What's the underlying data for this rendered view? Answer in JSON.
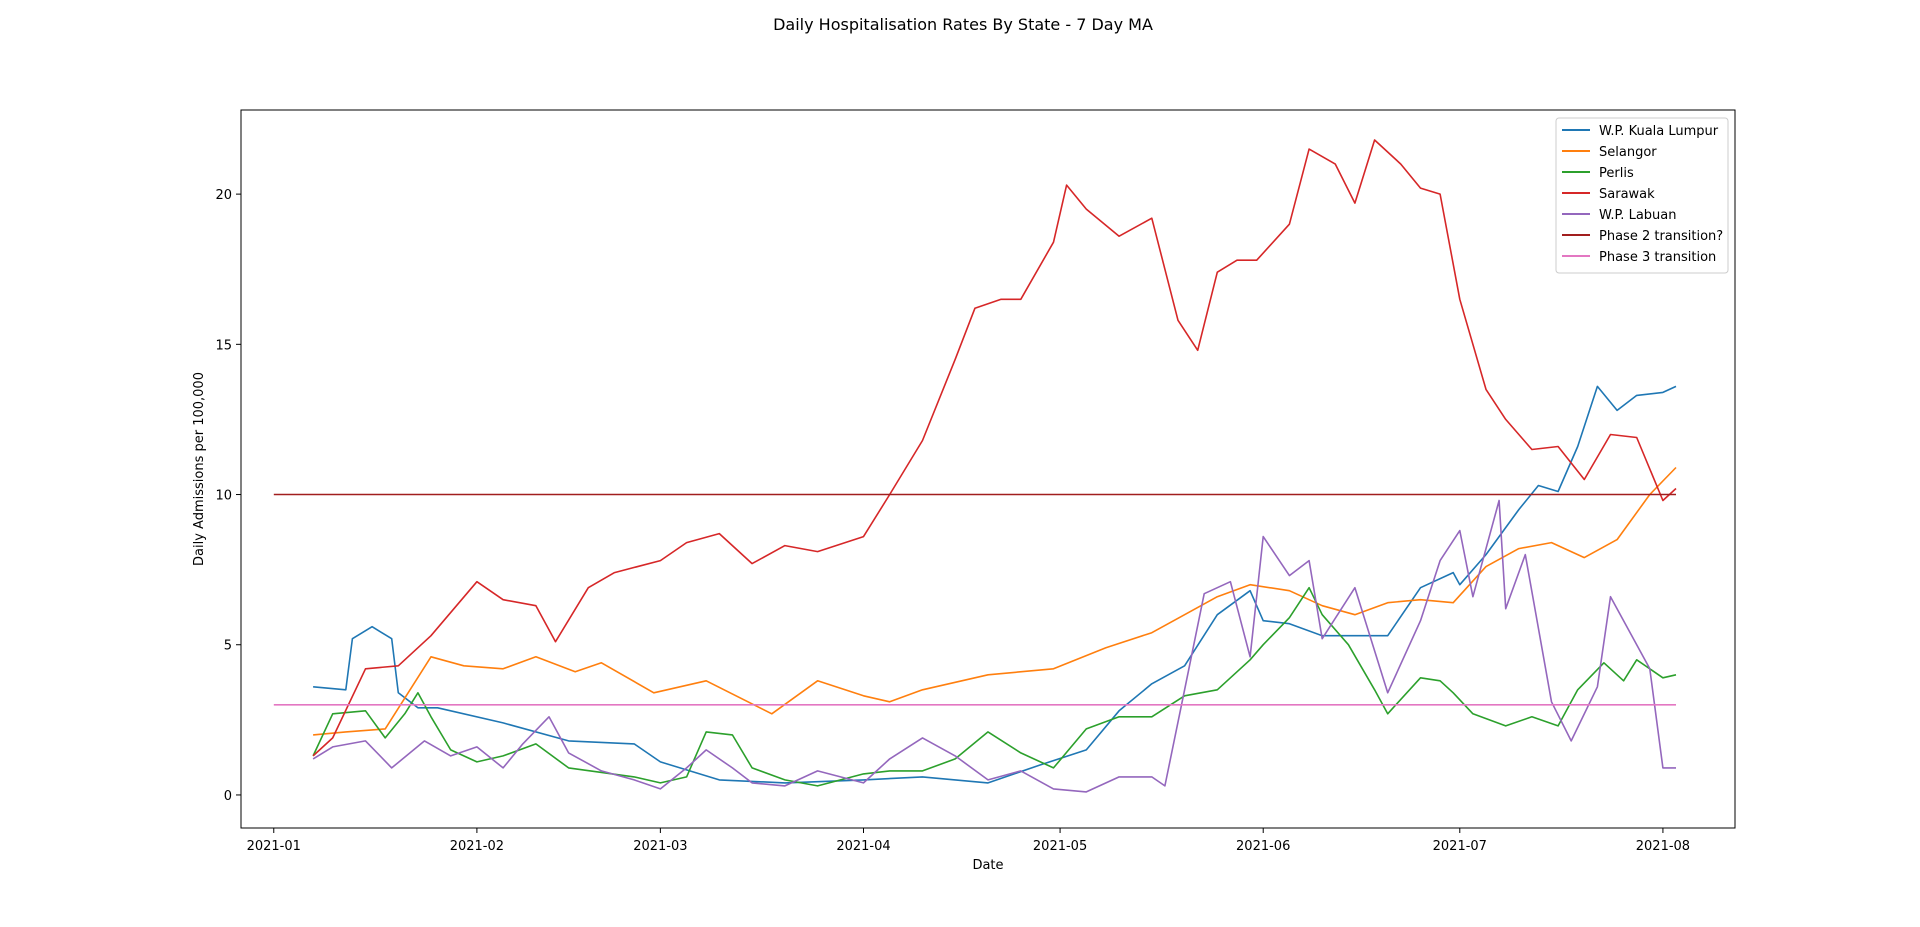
{
  "chart_data": {
    "type": "line",
    "title": "Daily Hospitalisation Rates By State - 7 Day MA",
    "xlabel": "Date",
    "ylabel": "Daily Admissions per 100,000",
    "xlim": [
      "2020-12-27",
      "2021-08-12"
    ],
    "ylim": [
      -1.1,
      22.8
    ],
    "x_ticks": [
      "2021-01-01",
      "2021-02-01",
      "2021-03-01",
      "2021-04-01",
      "2021-05-01",
      "2021-06-01",
      "2021-07-01",
      "2021-08-01"
    ],
    "x_tick_labels": [
      "2021-01",
      "2021-02",
      "2021-03",
      "2021-04",
      "2021-05",
      "2021-06",
      "2021-07",
      "2021-08"
    ],
    "y_ticks": [
      0,
      5,
      10,
      15,
      20
    ],
    "y_tick_labels": [
      "0",
      "5",
      "10",
      "15",
      "20"
    ],
    "legend_position": "top-right",
    "grid": false,
    "series": [
      {
        "name": "W.P. Kuala Lumpur",
        "color": "#1f77b4",
        "points": [
          [
            "2021-01-07",
            3.6
          ],
          [
            "2021-01-12",
            3.5
          ],
          [
            "2021-01-13",
            5.2
          ],
          [
            "2021-01-16",
            5.6
          ],
          [
            "2021-01-19",
            5.2
          ],
          [
            "2021-01-20",
            3.4
          ],
          [
            "2021-01-23",
            2.9
          ],
          [
            "2021-01-26",
            2.9
          ],
          [
            "2021-02-05",
            2.4
          ],
          [
            "2021-02-15",
            1.8
          ],
          [
            "2021-02-25",
            1.7
          ],
          [
            "2021-03-01",
            1.1
          ],
          [
            "2021-03-10",
            0.5
          ],
          [
            "2021-03-20",
            0.4
          ],
          [
            "2021-04-01",
            0.5
          ],
          [
            "2021-04-10",
            0.6
          ],
          [
            "2021-04-20",
            0.4
          ],
          [
            "2021-04-28",
            1.0
          ],
          [
            "2021-05-05",
            1.5
          ],
          [
            "2021-05-10",
            2.8
          ],
          [
            "2021-05-15",
            3.7
          ],
          [
            "2021-05-20",
            4.3
          ],
          [
            "2021-05-25",
            6.0
          ],
          [
            "2021-05-30",
            6.8
          ],
          [
            "2021-06-01",
            5.8
          ],
          [
            "2021-06-05",
            5.7
          ],
          [
            "2021-06-10",
            5.3
          ],
          [
            "2021-06-15",
            5.3
          ],
          [
            "2021-06-20",
            5.3
          ],
          [
            "2021-06-25",
            6.9
          ],
          [
            "2021-06-30",
            7.4
          ],
          [
            "2021-07-01",
            7.0
          ],
          [
            "2021-07-05",
            8.0
          ],
          [
            "2021-07-10",
            9.5
          ],
          [
            "2021-07-13",
            10.3
          ],
          [
            "2021-07-16",
            10.1
          ],
          [
            "2021-07-19",
            11.6
          ],
          [
            "2021-07-22",
            13.6
          ],
          [
            "2021-07-25",
            12.8
          ],
          [
            "2021-07-28",
            13.3
          ],
          [
            "2021-08-01",
            13.4
          ],
          [
            "2021-08-03",
            13.6
          ]
        ]
      },
      {
        "name": "Selangor",
        "color": "#ff7f0e",
        "points": [
          [
            "2021-01-07",
            2.0
          ],
          [
            "2021-01-12",
            2.1
          ],
          [
            "2021-01-18",
            2.2
          ],
          [
            "2021-01-25",
            4.6
          ],
          [
            "2021-01-30",
            4.3
          ],
          [
            "2021-02-05",
            4.2
          ],
          [
            "2021-02-10",
            4.6
          ],
          [
            "2021-02-16",
            4.1
          ],
          [
            "2021-02-20",
            4.4
          ],
          [
            "2021-02-28",
            3.4
          ],
          [
            "2021-03-08",
            3.8
          ],
          [
            "2021-03-18",
            2.7
          ],
          [
            "2021-03-25",
            3.8
          ],
          [
            "2021-04-01",
            3.3
          ],
          [
            "2021-04-05",
            3.1
          ],
          [
            "2021-04-10",
            3.5
          ],
          [
            "2021-04-20",
            4.0
          ],
          [
            "2021-04-30",
            4.2
          ],
          [
            "2021-05-08",
            4.9
          ],
          [
            "2021-05-15",
            5.4
          ],
          [
            "2021-05-20",
            6.0
          ],
          [
            "2021-05-25",
            6.6
          ],
          [
            "2021-05-30",
            7.0
          ],
          [
            "2021-06-05",
            6.8
          ],
          [
            "2021-06-10",
            6.3
          ],
          [
            "2021-06-15",
            6.0
          ],
          [
            "2021-06-20",
            6.4
          ],
          [
            "2021-06-25",
            6.5
          ],
          [
            "2021-06-30",
            6.4
          ],
          [
            "2021-07-05",
            7.6
          ],
          [
            "2021-07-10",
            8.2
          ],
          [
            "2021-07-15",
            8.4
          ],
          [
            "2021-07-20",
            7.9
          ],
          [
            "2021-07-25",
            8.5
          ],
          [
            "2021-07-30",
            10.0
          ],
          [
            "2021-08-03",
            10.9
          ]
        ]
      },
      {
        "name": "Perlis",
        "color": "#2ca02c",
        "points": [
          [
            "2021-01-07",
            1.3
          ],
          [
            "2021-01-10",
            2.7
          ],
          [
            "2021-01-15",
            2.8
          ],
          [
            "2021-01-18",
            1.9
          ],
          [
            "2021-01-21",
            2.7
          ],
          [
            "2021-01-23",
            3.4
          ],
          [
            "2021-01-25",
            2.6
          ],
          [
            "2021-01-28",
            1.5
          ],
          [
            "2021-02-01",
            1.1
          ],
          [
            "2021-02-05",
            1.3
          ],
          [
            "2021-02-10",
            1.7
          ],
          [
            "2021-02-15",
            0.9
          ],
          [
            "2021-02-25",
            0.6
          ],
          [
            "2021-03-01",
            0.4
          ],
          [
            "2021-03-05",
            0.6
          ],
          [
            "2021-03-08",
            2.1
          ],
          [
            "2021-03-12",
            2.0
          ],
          [
            "2021-03-15",
            0.9
          ],
          [
            "2021-03-20",
            0.5
          ],
          [
            "2021-03-25",
            0.3
          ],
          [
            "2021-04-01",
            0.7
          ],
          [
            "2021-04-05",
            0.8
          ],
          [
            "2021-04-10",
            0.8
          ],
          [
            "2021-04-15",
            1.2
          ],
          [
            "2021-04-20",
            2.1
          ],
          [
            "2021-04-25",
            1.4
          ],
          [
            "2021-04-30",
            0.9
          ],
          [
            "2021-05-05",
            2.2
          ],
          [
            "2021-05-10",
            2.6
          ],
          [
            "2021-05-15",
            2.6
          ],
          [
            "2021-05-20",
            3.3
          ],
          [
            "2021-05-25",
            3.5
          ],
          [
            "2021-05-30",
            4.5
          ],
          [
            "2021-06-01",
            5.0
          ],
          [
            "2021-06-05",
            5.9
          ],
          [
            "2021-06-08",
            6.9
          ],
          [
            "2021-06-10",
            6.0
          ],
          [
            "2021-06-14",
            5.0
          ],
          [
            "2021-06-18",
            3.5
          ],
          [
            "2021-06-20",
            2.7
          ],
          [
            "2021-06-25",
            3.9
          ],
          [
            "2021-06-28",
            3.8
          ],
          [
            "2021-06-30",
            3.4
          ],
          [
            "2021-07-03",
            2.7
          ],
          [
            "2021-07-08",
            2.3
          ],
          [
            "2021-07-12",
            2.6
          ],
          [
            "2021-07-16",
            2.3
          ],
          [
            "2021-07-19",
            3.5
          ],
          [
            "2021-07-23",
            4.4
          ],
          [
            "2021-07-26",
            3.8
          ],
          [
            "2021-07-28",
            4.5
          ],
          [
            "2021-08-01",
            3.9
          ],
          [
            "2021-08-03",
            4.0
          ]
        ]
      },
      {
        "name": "Sarawak",
        "color": "#d62728",
        "points": [
          [
            "2021-01-07",
            1.3
          ],
          [
            "2021-01-10",
            1.9
          ],
          [
            "2021-01-15",
            4.2
          ],
          [
            "2021-01-20",
            4.3
          ],
          [
            "2021-01-25",
            5.3
          ],
          [
            "2021-02-01",
            7.1
          ],
          [
            "2021-02-05",
            6.5
          ],
          [
            "2021-02-10",
            6.3
          ],
          [
            "2021-02-13",
            5.1
          ],
          [
            "2021-02-18",
            6.9
          ],
          [
            "2021-02-22",
            7.4
          ],
          [
            "2021-03-01",
            7.8
          ],
          [
            "2021-03-05",
            8.4
          ],
          [
            "2021-03-10",
            8.7
          ],
          [
            "2021-03-15",
            7.7
          ],
          [
            "2021-03-20",
            8.3
          ],
          [
            "2021-03-25",
            8.1
          ],
          [
            "2021-04-01",
            8.6
          ],
          [
            "2021-04-05",
            10.0
          ],
          [
            "2021-04-10",
            11.8
          ],
          [
            "2021-04-15",
            14.5
          ],
          [
            "2021-04-18",
            16.2
          ],
          [
            "2021-04-22",
            16.5
          ],
          [
            "2021-04-25",
            16.5
          ],
          [
            "2021-04-30",
            18.4
          ],
          [
            "2021-05-02",
            20.3
          ],
          [
            "2021-05-05",
            19.5
          ],
          [
            "2021-05-10",
            18.6
          ],
          [
            "2021-05-15",
            19.2
          ],
          [
            "2021-05-19",
            15.8
          ],
          [
            "2021-05-22",
            14.8
          ],
          [
            "2021-05-25",
            17.4
          ],
          [
            "2021-05-28",
            17.8
          ],
          [
            "2021-05-31",
            17.8
          ],
          [
            "2021-06-05",
            19.0
          ],
          [
            "2021-06-08",
            21.5
          ],
          [
            "2021-06-12",
            21.0
          ],
          [
            "2021-06-15",
            19.7
          ],
          [
            "2021-06-18",
            21.8
          ],
          [
            "2021-06-22",
            21.0
          ],
          [
            "2021-06-25",
            20.2
          ],
          [
            "2021-06-28",
            20.0
          ],
          [
            "2021-07-01",
            16.5
          ],
          [
            "2021-07-05",
            13.5
          ],
          [
            "2021-07-08",
            12.5
          ],
          [
            "2021-07-12",
            11.5
          ],
          [
            "2021-07-16",
            11.6
          ],
          [
            "2021-07-20",
            10.5
          ],
          [
            "2021-07-24",
            12.0
          ],
          [
            "2021-07-28",
            11.9
          ],
          [
            "2021-08-01",
            9.8
          ],
          [
            "2021-08-03",
            10.2
          ]
        ]
      },
      {
        "name": "W.P. Labuan",
        "color": "#9467bd",
        "points": [
          [
            "2021-01-07",
            1.2
          ],
          [
            "2021-01-10",
            1.6
          ],
          [
            "2021-01-15",
            1.8
          ],
          [
            "2021-01-19",
            0.9
          ],
          [
            "2021-01-24",
            1.8
          ],
          [
            "2021-01-28",
            1.3
          ],
          [
            "2021-02-01",
            1.6
          ],
          [
            "2021-02-05",
            0.9
          ],
          [
            "2021-02-08",
            1.7
          ],
          [
            "2021-02-12",
            2.6
          ],
          [
            "2021-02-15",
            1.4
          ],
          [
            "2021-02-20",
            0.8
          ],
          [
            "2021-02-25",
            0.5
          ],
          [
            "2021-03-01",
            0.2
          ],
          [
            "2021-03-05",
            0.9
          ],
          [
            "2021-03-08",
            1.5
          ],
          [
            "2021-03-12",
            0.9
          ],
          [
            "2021-03-15",
            0.4
          ],
          [
            "2021-03-20",
            0.3
          ],
          [
            "2021-03-25",
            0.8
          ],
          [
            "2021-04-01",
            0.4
          ],
          [
            "2021-04-05",
            1.2
          ],
          [
            "2021-04-10",
            1.9
          ],
          [
            "2021-04-15",
            1.3
          ],
          [
            "2021-04-20",
            0.5
          ],
          [
            "2021-04-25",
            0.8
          ],
          [
            "2021-04-30",
            0.2
          ],
          [
            "2021-05-05",
            0.1
          ],
          [
            "2021-05-10",
            0.6
          ],
          [
            "2021-05-15",
            0.6
          ],
          [
            "2021-05-17",
            0.3
          ],
          [
            "2021-05-20",
            3.5
          ],
          [
            "2021-05-23",
            6.7
          ],
          [
            "2021-05-27",
            7.1
          ],
          [
            "2021-05-30",
            4.6
          ],
          [
            "2021-06-01",
            8.6
          ],
          [
            "2021-06-05",
            7.3
          ],
          [
            "2021-06-08",
            7.8
          ],
          [
            "2021-06-10",
            5.2
          ],
          [
            "2021-06-15",
            6.9
          ],
          [
            "2021-06-20",
            3.4
          ],
          [
            "2021-06-25",
            5.8
          ],
          [
            "2021-06-28",
            7.8
          ],
          [
            "2021-07-01",
            8.8
          ],
          [
            "2021-07-03",
            6.6
          ],
          [
            "2021-07-07",
            9.8
          ],
          [
            "2021-07-08",
            6.2
          ],
          [
            "2021-07-11",
            8.0
          ],
          [
            "2021-07-15",
            3.1
          ],
          [
            "2021-07-18",
            1.8
          ],
          [
            "2021-07-22",
            3.6
          ],
          [
            "2021-07-24",
            6.6
          ],
          [
            "2021-07-30",
            4.2
          ],
          [
            "2021-08-01",
            0.9
          ],
          [
            "2021-08-03",
            0.9
          ]
        ]
      },
      {
        "name": "Phase 2 transition?",
        "color": "#a11e1e",
        "points": [
          [
            "2021-01-01",
            10
          ],
          [
            "2021-08-03",
            10
          ]
        ]
      },
      {
        "name": "Phase 3 transition",
        "color": "#e377c2",
        "points": [
          [
            "2021-01-01",
            3
          ],
          [
            "2021-08-03",
            3
          ]
        ]
      }
    ]
  }
}
